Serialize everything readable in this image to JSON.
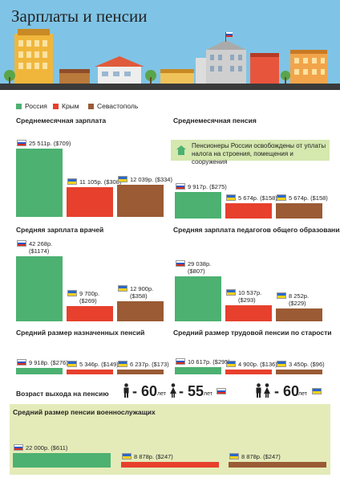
{
  "title": "Зарплаты и пенсии",
  "colors": {
    "russia": "#4cb171",
    "crimea": "#e7402d",
    "sevastopol": "#9a5b35",
    "note_bg": "#d5e8ae",
    "military_bg": "#e4ebb9"
  },
  "legend": [
    {
      "name": "Россия",
      "color": "#4cb171"
    },
    {
      "name": "Крым",
      "color": "#e7402d"
    },
    {
      "name": "Севастополь",
      "color": "#9a5b35"
    }
  ],
  "note": "Пенсионеры России освобождены от уплаты налога на строения, помещения и сооружения",
  "retirement": {
    "heading": "Возраст выхода на пенсию",
    "russia_male": "60",
    "russia_female": "55",
    "ukraine": "60",
    "unit": "лет"
  },
  "chart_data": [
    {
      "type": "bar",
      "title": "Среднемесячная зарплата",
      "categories": [
        "Россия",
        "Крым",
        "Севастополь"
      ],
      "values": [
        25511,
        11105,
        12039
      ],
      "labels": [
        "25 511р. ($709)",
        "11 105р. ($308)",
        "12 039р. ($334)"
      ]
    },
    {
      "type": "bar",
      "title": "Среднемесячная пенсия",
      "categories": [
        "Россия",
        "Крым",
        "Севастополь"
      ],
      "values": [
        9917,
        5674,
        5674
      ],
      "labels": [
        "9 917р. ($275)",
        "5 674р. ($158)",
        "5 674р. ($158)"
      ]
    },
    {
      "type": "bar",
      "title": "Средняя зарплата врачей",
      "categories": [
        "Россия",
        "Крым",
        "Севастополь"
      ],
      "values": [
        42268,
        9700,
        12900
      ],
      "labels": [
        "42 268р.",
        "($1174)",
        "9 700р.",
        "($269)",
        "12 900р.",
        "($358)"
      ]
    },
    {
      "type": "bar",
      "title": "Средняя зарплата педагогов общего образования",
      "categories": [
        "Россия",
        "Крым",
        "Севастополь"
      ],
      "values": [
        29038,
        10537,
        8252
      ],
      "labels": [
        "29 038р.",
        "($807)",
        "10 537р.",
        "($293)",
        "8 252р.",
        "($229)"
      ]
    },
    {
      "type": "bar",
      "title": "Средний размер назначенных пенсий",
      "categories": [
        "Россия",
        "Крым",
        "Севастополь"
      ],
      "values": [
        9918,
        5346,
        6237
      ],
      "labels": [
        "9 918р. ($276)",
        "5 346р. ($149)",
        "6 237р. ($173)"
      ]
    },
    {
      "type": "bar",
      "title": "Средний размер трудовой пенсии по старости",
      "categories": [
        "Россия",
        "Крым",
        "Севастополь"
      ],
      "values": [
        10617,
        4900,
        3450
      ],
      "labels": [
        "10 617р. ($295)",
        "4 900р. ($136)",
        "3 450р. ($96)"
      ]
    },
    {
      "type": "bar",
      "title": "Средний размер пенсии военнослужащих",
      "categories": [
        "Россия",
        "Крым",
        "Севастополь"
      ],
      "values": [
        22000,
        8878,
        8878
      ],
      "labels": [
        "22 000р. ($611)",
        "8 878р. ($247)",
        "8 878р. ($247)"
      ]
    }
  ]
}
